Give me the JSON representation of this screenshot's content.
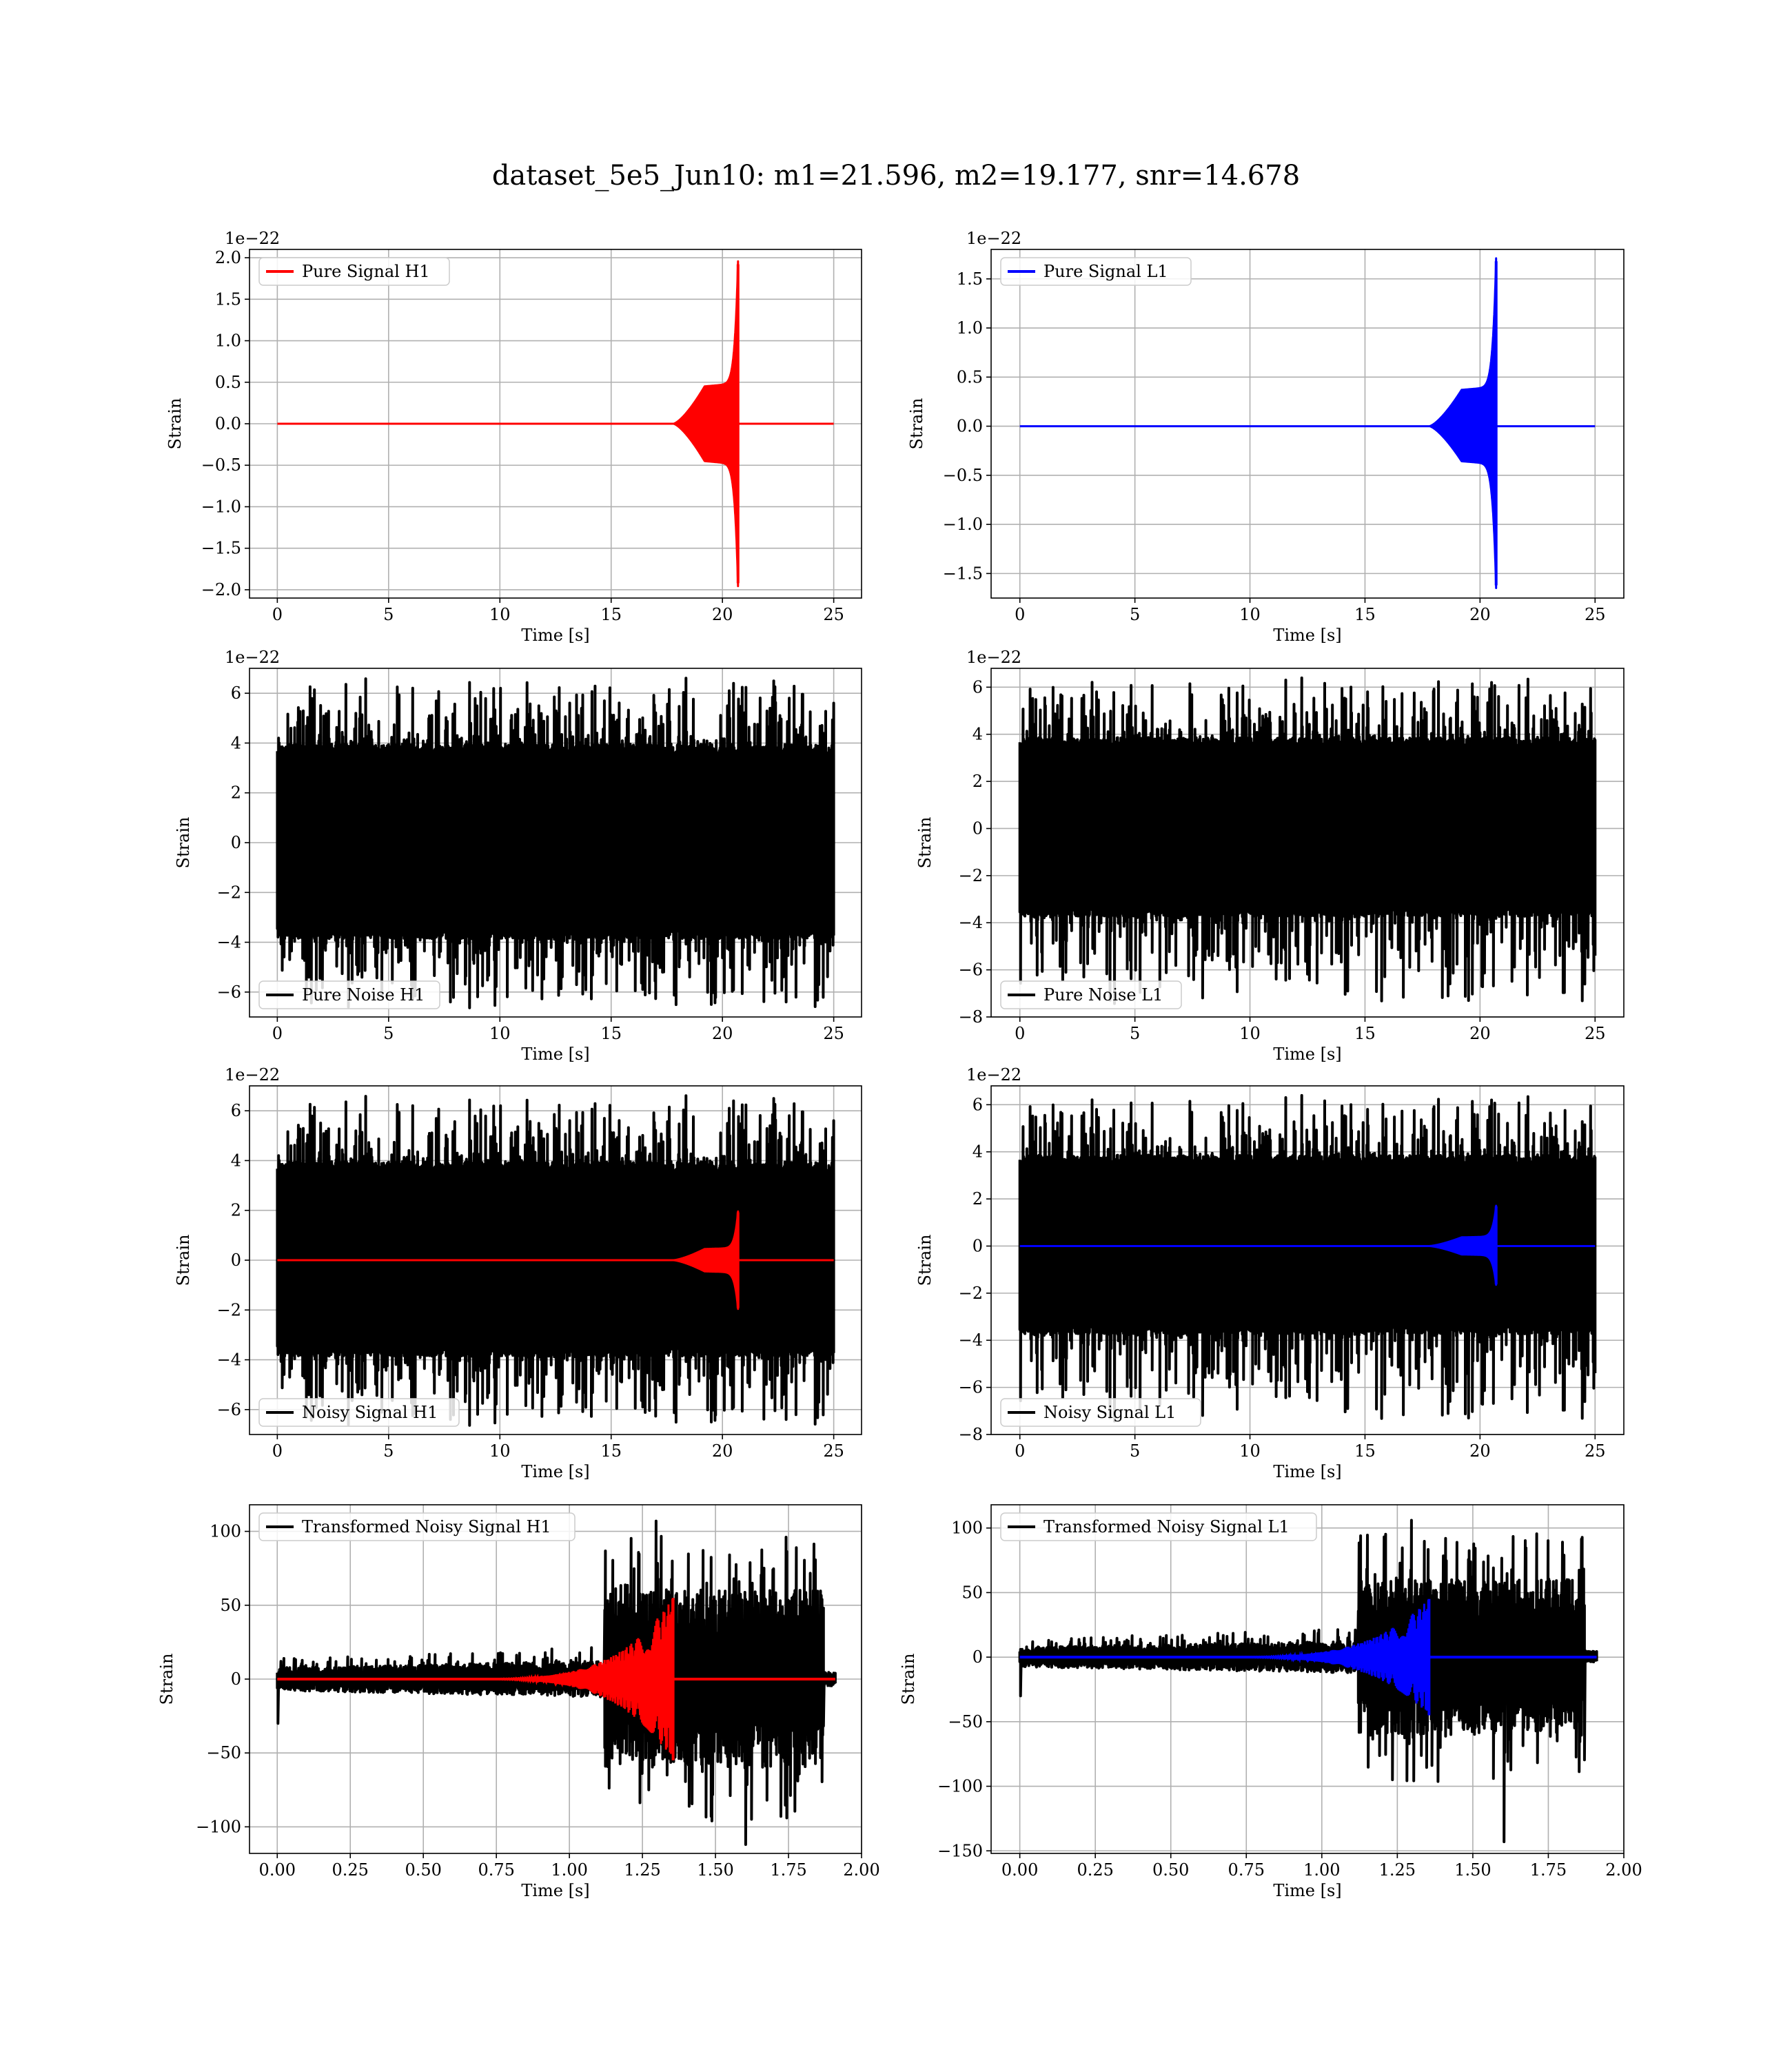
{
  "figure": {
    "title": "dataset_5e5_Jun10: m1=21.596, m2=19.177, snr=14.678",
    "colors": {
      "h1": "#ff0000",
      "l1": "#0000ff",
      "noise": "#000000",
      "grid": "#b0b0b0",
      "axes": "#000000"
    }
  },
  "chart_data": [
    {
      "id": "pure-signal-h1",
      "type": "line",
      "xlabel": "Time [s]",
      "ylabel": "Strain",
      "offset_text": "1e−22",
      "xlim": [
        -1.25,
        26.25
      ],
      "ylim": [
        -2.1,
        2.1
      ],
      "xticks": [
        0,
        5,
        10,
        15,
        20,
        25
      ],
      "xtick_labels": [
        "0",
        "5",
        "10",
        "15",
        "20",
        "25"
      ],
      "yticks": [
        -2.0,
        -1.5,
        -1.0,
        -0.5,
        0.0,
        0.5,
        1.0,
        1.5,
        2.0
      ],
      "ytick_labels": [
        "−2.0",
        "−1.5",
        "−1.0",
        "−0.5",
        "0.0",
        "0.5",
        "1.0",
        "1.5",
        "2.0"
      ],
      "grid": true,
      "legend_loc": "upper left",
      "series": [
        {
          "name": "Pure Signal H1",
          "color": "#ff0000",
          "kind": "chirp",
          "params": {
            "x_start": 0,
            "x_end": 25,
            "t_c": 20.7,
            "peak": 1.92,
            "peak_neg": -1.92,
            "env_mid": 0.45,
            "env_rise_start": 17.8,
            "env_rise_end": 19.2
          }
        }
      ]
    },
    {
      "id": "pure-signal-l1",
      "type": "line",
      "xlabel": "Time [s]",
      "ylabel": "Strain",
      "offset_text": "1e−22",
      "xlim": [
        -1.25,
        26.25
      ],
      "ylim": [
        -1.75,
        1.8
      ],
      "xticks": [
        0,
        5,
        10,
        15,
        20,
        25
      ],
      "xtick_labels": [
        "0",
        "5",
        "10",
        "15",
        "20",
        "25"
      ],
      "yticks": [
        -1.5,
        -1.0,
        -0.5,
        0.0,
        0.5,
        1.0,
        1.5
      ],
      "ytick_labels": [
        "−1.5",
        "−1.0",
        "−0.5",
        "0.0",
        "0.5",
        "1.0",
        "1.5"
      ],
      "grid": true,
      "legend_loc": "upper left",
      "series": [
        {
          "name": "Pure Signal L1",
          "color": "#0000ff",
          "kind": "chirp",
          "params": {
            "x_start": 0,
            "x_end": 25,
            "t_c": 20.7,
            "peak": 1.68,
            "peak_neg": -1.62,
            "env_mid": 0.37,
            "env_rise_start": 17.8,
            "env_rise_end": 19.2
          }
        }
      ]
    },
    {
      "id": "pure-noise-h1",
      "type": "line",
      "xlabel": "Time [s]",
      "ylabel": "Strain",
      "offset_text": "1e−22",
      "xlim": [
        -1.25,
        26.25
      ],
      "ylim": [
        -7.0,
        7.0
      ],
      "xticks": [
        0,
        5,
        10,
        15,
        20,
        25
      ],
      "xtick_labels": [
        "0",
        "5",
        "10",
        "15",
        "20",
        "25"
      ],
      "yticks": [
        -6,
        -4,
        -2,
        0,
        2,
        4,
        6
      ],
      "ytick_labels": [
        "−6",
        "−4",
        "−2",
        "0",
        "2",
        "4",
        "6"
      ],
      "grid": true,
      "legend_loc": "lower left",
      "series": [
        {
          "name": "Pure Noise H1",
          "color": "#000000",
          "kind": "noise",
          "params": {
            "x_start": 0,
            "x_end": 25,
            "band_hi": 3.7,
            "band_lo": -3.6,
            "max": 6.4,
            "min": -6.5,
            "seed": 11
          }
        }
      ]
    },
    {
      "id": "pure-noise-l1",
      "type": "line",
      "xlabel": "Time [s]",
      "ylabel": "Strain",
      "offset_text": "1e−22",
      "xlim": [
        -1.25,
        26.25
      ],
      "ylim": [
        -8.0,
        6.8
      ],
      "xticks": [
        0,
        5,
        10,
        15,
        20,
        25
      ],
      "xtick_labels": [
        "0",
        "5",
        "10",
        "15",
        "20",
        "25"
      ],
      "yticks": [
        -8,
        -6,
        -4,
        -2,
        0,
        2,
        4,
        6
      ],
      "ytick_labels": [
        "−8",
        "−6",
        "−4",
        "−2",
        "0",
        "2",
        "4",
        "6"
      ],
      "grid": true,
      "legend_loc": "lower left",
      "series": [
        {
          "name": "Pure Noise L1",
          "color": "#000000",
          "kind": "noise",
          "params": {
            "x_start": 0,
            "x_end": 25,
            "band_hi": 3.6,
            "band_lo": -3.5,
            "max": 6.2,
            "min": -7.3,
            "seed": 23
          }
        }
      ]
    },
    {
      "id": "noisy-signal-h1",
      "type": "line",
      "xlabel": "Time [s]",
      "ylabel": "Strain",
      "offset_text": "1e−22",
      "xlim": [
        -1.25,
        26.25
      ],
      "ylim": [
        -7.0,
        7.0
      ],
      "xticks": [
        0,
        5,
        10,
        15,
        20,
        25
      ],
      "xtick_labels": [
        "0",
        "5",
        "10",
        "15",
        "20",
        "25"
      ],
      "yticks": [
        -6,
        -4,
        -2,
        0,
        2,
        4,
        6
      ],
      "ytick_labels": [
        "−6",
        "−4",
        "−2",
        "0",
        "2",
        "4",
        "6"
      ],
      "grid": true,
      "legend_loc": "lower left",
      "series": [
        {
          "name": "Noisy Signal H1",
          "color": "#000000",
          "kind": "noise",
          "params": {
            "x_start": 0,
            "x_end": 25,
            "band_hi": 3.7,
            "band_lo": -3.6,
            "max": 6.4,
            "min": -6.5,
            "seed": 11
          }
        },
        {
          "name": "",
          "color": "#ff0000",
          "kind": "chirp",
          "params": {
            "x_start": 0,
            "x_end": 25,
            "t_c": 20.7,
            "peak": 1.92,
            "peak_neg": -1.92,
            "env_mid": 0.45,
            "env_rise_start": 17.8,
            "env_rise_end": 19.2
          }
        }
      ]
    },
    {
      "id": "noisy-signal-l1",
      "type": "line",
      "xlabel": "Time [s]",
      "ylabel": "Strain",
      "offset_text": "1e−22",
      "xlim": [
        -1.25,
        26.25
      ],
      "ylim": [
        -8.0,
        6.8
      ],
      "xticks": [
        0,
        5,
        10,
        15,
        20,
        25
      ],
      "xtick_labels": [
        "0",
        "5",
        "10",
        "15",
        "20",
        "25"
      ],
      "yticks": [
        -8,
        -6,
        -4,
        -2,
        0,
        2,
        4,
        6
      ],
      "ytick_labels": [
        "−8",
        "−6",
        "−4",
        "−2",
        "0",
        "2",
        "4",
        "6"
      ],
      "grid": true,
      "legend_loc": "lower left",
      "series": [
        {
          "name": "Noisy Signal L1",
          "color": "#000000",
          "kind": "noise",
          "params": {
            "x_start": 0,
            "x_end": 25,
            "band_hi": 3.6,
            "band_lo": -3.5,
            "max": 6.2,
            "min": -7.3,
            "seed": 23
          }
        },
        {
          "name": "",
          "color": "#0000ff",
          "kind": "chirp",
          "params": {
            "x_start": 0,
            "x_end": 25,
            "t_c": 20.7,
            "peak": 1.68,
            "peak_neg": -1.62,
            "env_mid": 0.37,
            "env_rise_start": 17.8,
            "env_rise_end": 19.2
          }
        }
      ]
    },
    {
      "id": "transformed-noisy-signal-h1",
      "type": "line",
      "xlabel": "Time [s]",
      "ylabel": "Strain",
      "offset_text": "",
      "xlim": [
        -0.095,
        2.0
      ],
      "ylim": [
        -118,
        118
      ],
      "xticks": [
        0.0,
        0.25,
        0.5,
        0.75,
        1.0,
        1.25,
        1.5,
        1.75,
        2.0
      ],
      "xtick_labels": [
        "0.00",
        "0.25",
        "0.50",
        "0.75",
        "1.00",
        "1.25",
        "1.50",
        "1.75",
        "2.00"
      ],
      "yticks": [
        -100,
        -50,
        0,
        50,
        100
      ],
      "ytick_labels": [
        "−100",
        "−50",
        "0",
        "50",
        "100"
      ],
      "grid": true,
      "legend_loc": "upper left",
      "series": [
        {
          "name": "Transformed Noisy Signal H1",
          "color": "#000000",
          "kind": "tnoise",
          "params": {
            "x_start": 0,
            "x_end": 1.91,
            "quiet_end": 1.12,
            "burst_end": 1.87,
            "quiet_amp": 7,
            "burst_amp": 55,
            "max": 107,
            "min": -112,
            "seed": 37
          }
        },
        {
          "name": "",
          "color": "#ff0000",
          "kind": "tchirp",
          "params": {
            "x_start": 0,
            "x_end": 1.91,
            "t_c": 1.355,
            "peak": 55,
            "peak_neg": -55
          }
        }
      ]
    },
    {
      "id": "transformed-noisy-signal-l1",
      "type": "line",
      "xlabel": "Time [s]",
      "ylabel": "Strain",
      "offset_text": "",
      "xlim": [
        -0.095,
        2.0
      ],
      "ylim": [
        -152,
        118
      ],
      "xticks": [
        0.0,
        0.25,
        0.5,
        0.75,
        1.0,
        1.25,
        1.5,
        1.75,
        2.0
      ],
      "xtick_labels": [
        "0.00",
        "0.25",
        "0.50",
        "0.75",
        "1.00",
        "1.25",
        "1.50",
        "1.75",
        "2.00"
      ],
      "yticks": [
        -150,
        -100,
        -50,
        0,
        50,
        100
      ],
      "ytick_labels": [
        "−150",
        "−100",
        "−50",
        "0",
        "50",
        "100"
      ],
      "grid": true,
      "legend_loc": "upper left",
      "series": [
        {
          "name": "Transformed Noisy Signal L1",
          "color": "#000000",
          "kind": "tnoise",
          "params": {
            "x_start": 0,
            "x_end": 1.91,
            "quiet_end": 1.12,
            "burst_end": 1.87,
            "quiet_amp": 7,
            "burst_amp": 55,
            "max": 106,
            "min": -143,
            "seed": 53
          }
        },
        {
          "name": "",
          "color": "#0000ff",
          "kind": "tchirp",
          "params": {
            "x_start": 0,
            "x_end": 1.91,
            "t_c": 1.355,
            "peak": 45,
            "peak_neg": -45
          }
        }
      ]
    }
  ]
}
